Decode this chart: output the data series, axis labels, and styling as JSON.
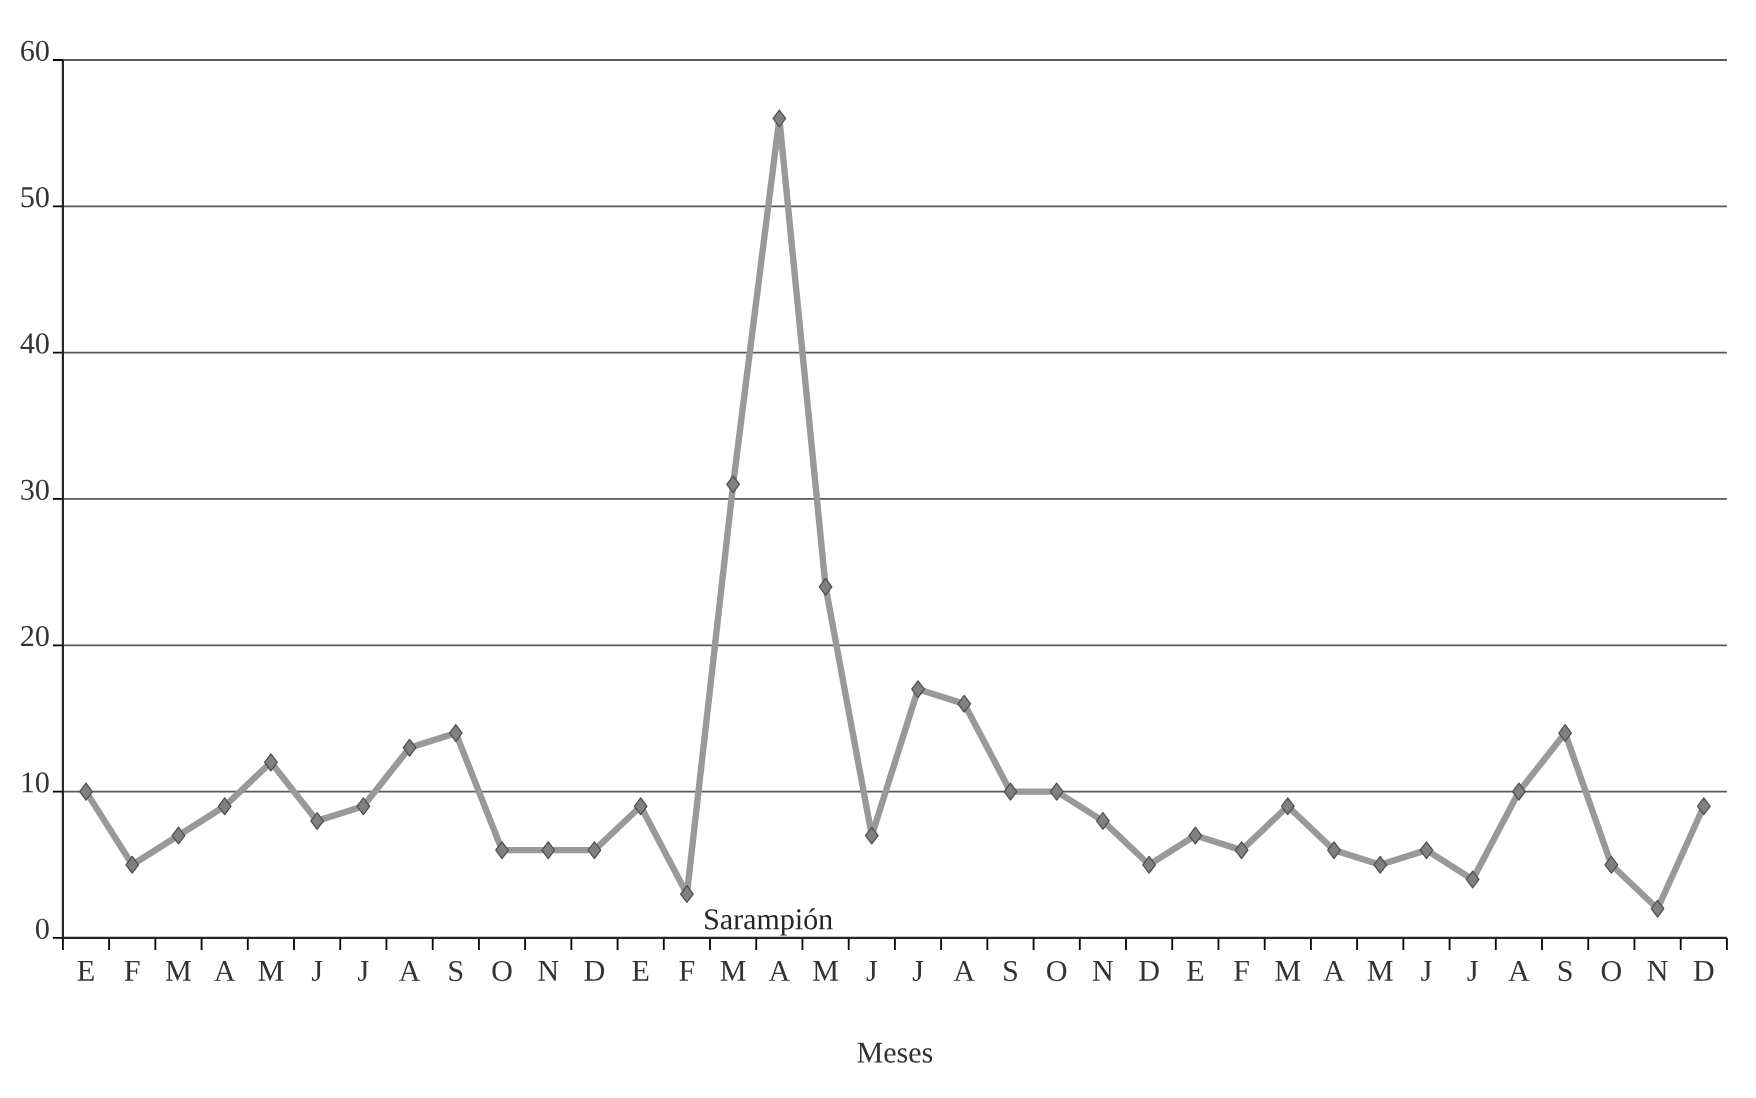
{
  "chart_data": {
    "type": "line",
    "xlabel": "Meses",
    "categories": [
      "E",
      "F",
      "M",
      "A",
      "M",
      "J",
      "J",
      "A",
      "S",
      "O",
      "N",
      "D",
      "E",
      "F",
      "M",
      "A",
      "M",
      "J",
      "J",
      "A",
      "S",
      "O",
      "N",
      "D",
      "E",
      "F",
      "M",
      "A",
      "M",
      "J",
      "J",
      "A",
      "S",
      "O",
      "N",
      "D"
    ],
    "series": [
      {
        "name": "Sarampión",
        "color": "#999999",
        "values": [
          10,
          5,
          7,
          9,
          12,
          8,
          9,
          13,
          14,
          6,
          6,
          6,
          9,
          3,
          31,
          56,
          24,
          7,
          17,
          16,
          10,
          10,
          8,
          5,
          7,
          6,
          9,
          6,
          5,
          6,
          4,
          10,
          14,
          5,
          2,
          9
        ]
      }
    ],
    "ylim": [
      0,
      60
    ],
    "yticks": [
      0,
      10,
      20,
      30,
      40,
      50,
      60
    ],
    "grid": "y",
    "legend": false,
    "marker": "diamond",
    "line_style": "solid"
  }
}
